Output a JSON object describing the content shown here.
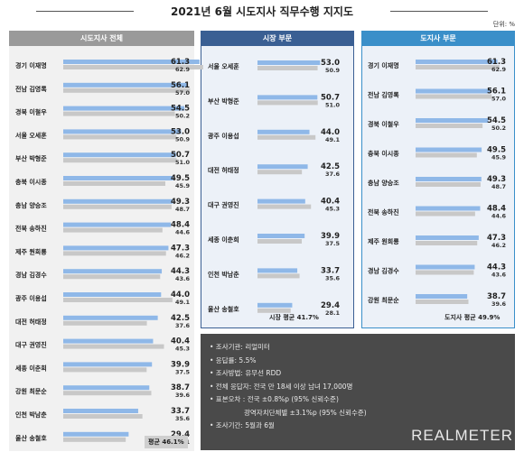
{
  "title": "2021년 6월 시도지사 직무수행 지지도",
  "unit": "단위: %",
  "colors": {
    "current": "#8fb8e8",
    "previous": "#c8c8c8"
  },
  "chart_data": [
    {
      "type": "bar",
      "title": "시도지사 전체",
      "categories": [
        "경기 이재명",
        "전남 김영록",
        "경북 이철우",
        "서울 오세훈",
        "부산 박형준",
        "충북 이시종",
        "충남 양승조",
        "전북 송하진",
        "제주 원희룡",
        "경남 김경수",
        "광주 이용섭",
        "대전 허태정",
        "대구 권영진",
        "세종 이춘희",
        "강원 최문순",
        "인천 박남춘",
        "울산 송철호"
      ],
      "series": [
        {
          "values": [
            61.3,
            56.1,
            54.5,
            53.0,
            50.7,
            49.5,
            49.3,
            48.4,
            47.3,
            44.3,
            44.0,
            42.5,
            40.4,
            39.9,
            38.7,
            33.7,
            29.4
          ]
        },
        {
          "values": [
            62.9,
            57.0,
            50.2,
            50.9,
            51.0,
            45.9,
            48.7,
            44.6,
            46.2,
            43.6,
            49.1,
            37.6,
            45.3,
            37.5,
            39.6,
            35.6,
            28.1
          ]
        }
      ],
      "average_label": "평균 46.1%"
    },
    {
      "type": "bar",
      "title": "시장 부문",
      "categories": [
        "서울 오세훈",
        "부산 박형준",
        "광주 이용섭",
        "대전 허태정",
        "대구 권영진",
        "세종 이춘희",
        "인천 박남춘",
        "울산 송철호"
      ],
      "series": [
        {
          "values": [
            53.0,
            50.7,
            44.0,
            42.5,
            40.4,
            39.9,
            33.7,
            29.4
          ]
        },
        {
          "values": [
            50.9,
            51.0,
            49.1,
            37.6,
            45.3,
            37.5,
            35.6,
            28.1
          ]
        }
      ],
      "average_label": "시장 평균 41.7%"
    },
    {
      "type": "bar",
      "title": "도지사 부문",
      "categories": [
        "경기 이재명",
        "전남 김영록",
        "경북 이철우",
        "충북 이시종",
        "충남 양승조",
        "전북 송하진",
        "제주 원희룡",
        "경남 김경수",
        "강원 최문순"
      ],
      "series": [
        {
          "values": [
            61.3,
            56.1,
            54.5,
            49.5,
            49.3,
            48.4,
            47.3,
            44.3,
            38.7
          ]
        },
        {
          "values": [
            62.9,
            57.0,
            50.2,
            45.9,
            48.7,
            44.6,
            46.2,
            43.6,
            39.6
          ]
        }
      ],
      "average_label": "도지사 평균 49.9%"
    }
  ],
  "notes": [
    {
      "text": "• 조사기관: 리얼미터",
      "cont": false
    },
    {
      "text": "• 응답률: 5.5%",
      "cont": false
    },
    {
      "text": "• 조사방법: 유무선 RDD",
      "cont": false
    },
    {
      "text": "• 전체 응답자: 전국 만 18세 이상 남녀 17,000명",
      "cont": false
    },
    {
      "text": "• 표본오차 : 전국 ±0.8%p (95% 신뢰수준)",
      "cont": false
    },
    {
      "text": "광역자치단체별 ±3.1%p (95% 신뢰수준)",
      "cont": true
    },
    {
      "text": "• 조사기간: 5월과 6월",
      "cont": false
    }
  ],
  "brand": "REALMETER"
}
